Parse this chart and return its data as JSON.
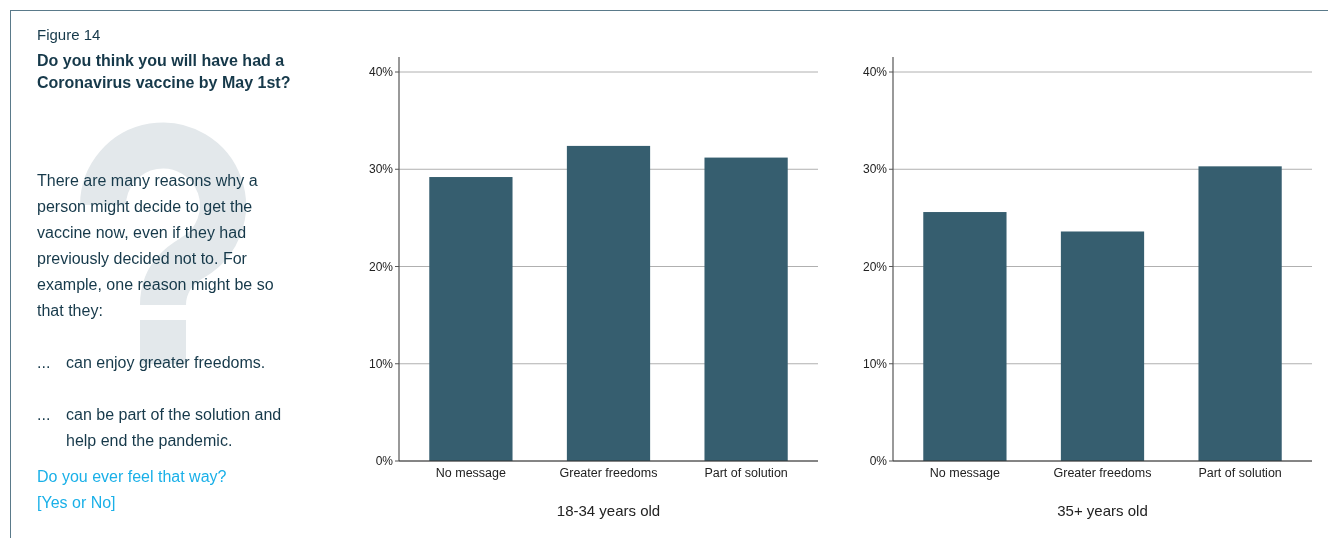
{
  "chart_data": [
    {
      "type": "other",
      "title": "Figure 14",
      "subtitle": "Do you think you will have had a Coronavirus vaccine by May 1st?",
      "annotations": [
        "There are many reasons why a person might decide to get the vaccine now, even if they had previously decided not to. For example, one reason might be so that they:",
        "... can enjoy greater freedoms.",
        "... can be part of the solution and help end the pandemic.",
        "Do you ever feel that way?",
        "[Yes or No]"
      ]
    },
    {
      "type": "bar",
      "xlabel": "18-34 years old",
      "categories": [
        "No message",
        "Greater freedoms",
        "Part of solution"
      ],
      "values": [
        29.2,
        32.4,
        31.2
      ],
      "color": "#365e6f",
      "ylim": [
        0,
        40
      ],
      "yticks": [
        {
          "value": 0,
          "label": "0%"
        },
        {
          "value": 10,
          "label": "10%"
        },
        {
          "value": 20,
          "label": "20%"
        },
        {
          "value": 30,
          "label": "30%"
        },
        {
          "value": 40,
          "label": "40%"
        }
      ],
      "grid": "y"
    },
    {
      "type": "bar",
      "xlabel": "35+ years old",
      "categories": [
        "No message",
        "Greater freedoms",
        "Part of solution"
      ],
      "values": [
        25.6,
        23.6,
        30.3
      ],
      "color": "#365e6f",
      "ylim": [
        0,
        40
      ],
      "yticks": [
        {
          "value": 0,
          "label": "0%"
        },
        {
          "value": 10,
          "label": "10%"
        },
        {
          "value": 20,
          "label": "20%"
        },
        {
          "value": 30,
          "label": "30%"
        },
        {
          "value": 40,
          "label": "40%"
        }
      ],
      "grid": "y"
    }
  ]
}
